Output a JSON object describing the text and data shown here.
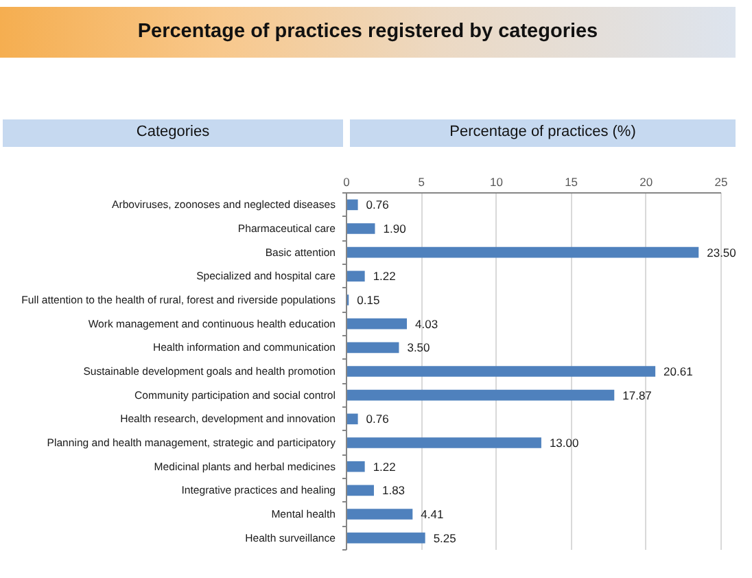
{
  "chart_data": {
    "type": "bar",
    "orientation": "horizontal",
    "title": "Percentage of practices registered by categories",
    "ylabel": "Categories",
    "xlabel": "Percentage of practices (%)",
    "categories": [
      "Arboviruses, zoonoses and neglected diseases",
      "Pharmaceutical care",
      "Basic attention",
      "Specialized and hospital care",
      "Full attention to the health of rural, forest and riverside populations",
      "Work management and continuous health education",
      "Health information and communication",
      "Sustainable development goals and health promotion",
      "Community participation and social control",
      "Health research, development and innovation",
      "Planning and health management, strategic and participatory",
      "Medicinal plants and herbal medicines",
      "Integrative practices and healing",
      "Mental health",
      "Health surveillance"
    ],
    "values": [
      0.76,
      1.9,
      23.5,
      1.22,
      0.15,
      4.03,
      3.5,
      20.61,
      17.87,
      0.76,
      13.0,
      1.22,
      1.83,
      4.41,
      5.25
    ],
    "value_labels": [
      "0.76",
      "1.90",
      "23.50",
      "1.22",
      "0.15",
      "4.03",
      "3.50",
      "20.61",
      "17.87",
      "0.76",
      "13.00",
      "1.22",
      "1.83",
      "4.41",
      "5.25"
    ],
    "color": "#4f81bd",
    "xlim": [
      0,
      25
    ],
    "xticks": [
      0,
      5,
      10,
      15,
      20,
      25
    ],
    "grid": "x"
  }
}
